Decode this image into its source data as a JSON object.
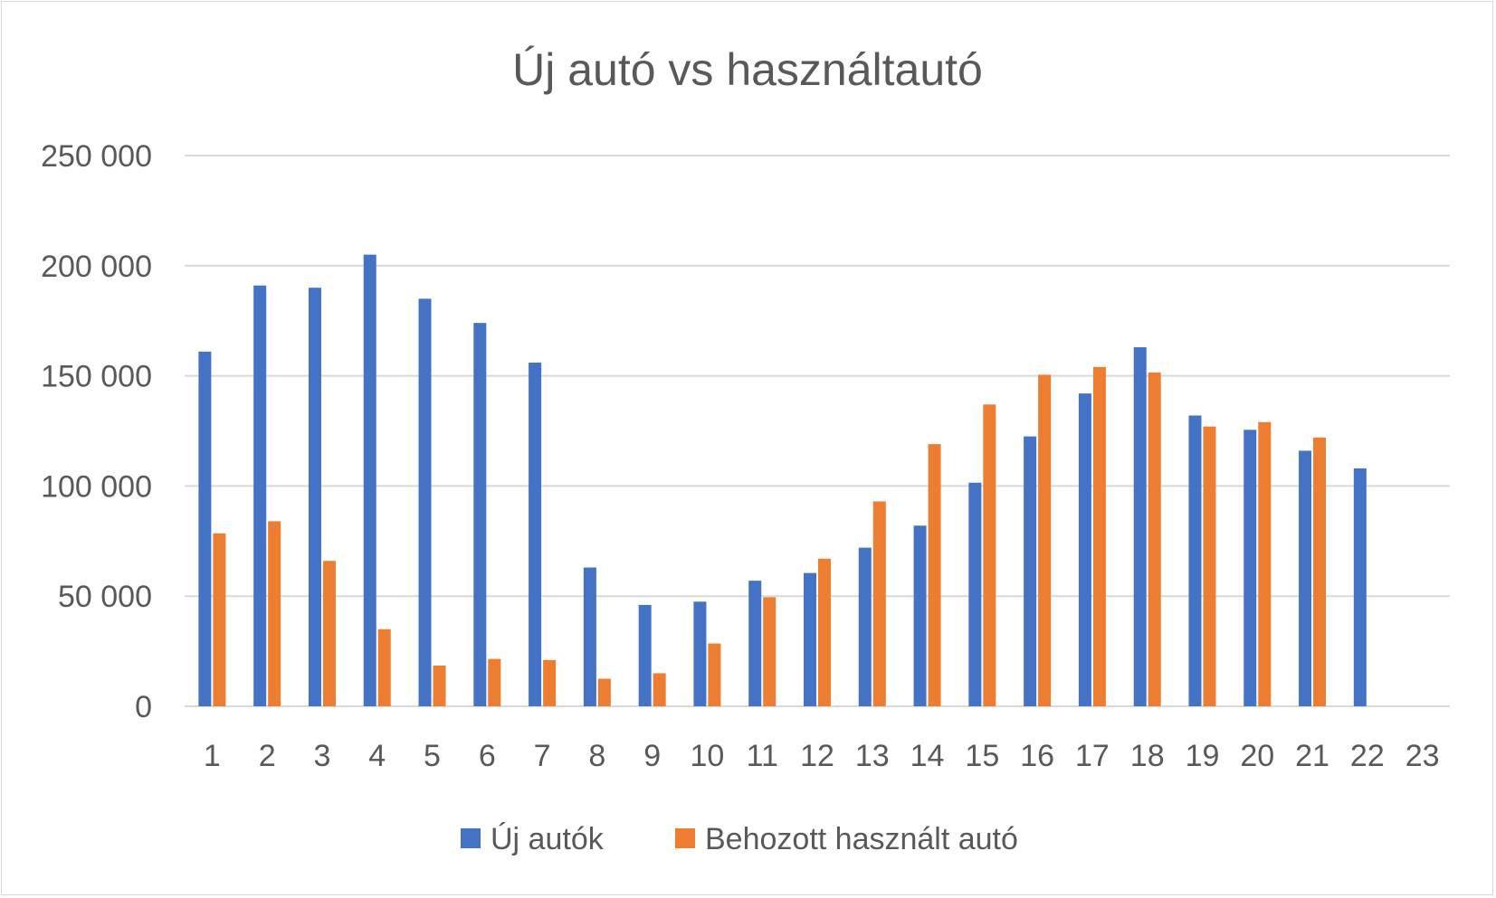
{
  "chart_data": {
    "type": "bar",
    "title": "Új autó vs használtautó",
    "xlabel": "",
    "ylabel": "",
    "categories": [
      "1",
      "2",
      "3",
      "4",
      "5",
      "6",
      "7",
      "8",
      "9",
      "10",
      "11",
      "12",
      "13",
      "14",
      "15",
      "16",
      "17",
      "18",
      "19",
      "20",
      "21",
      "22",
      "23"
    ],
    "series": [
      {
        "name": "Új autók",
        "color": "#4472c4",
        "values": [
          161000,
          191000,
          190000,
          205000,
          185000,
          174000,
          156000,
          63000,
          46000,
          47500,
          57000,
          60500,
          72000,
          82000,
          101500,
          122500,
          142000,
          163000,
          132000,
          125500,
          116000,
          108000,
          null
        ]
      },
      {
        "name": "Behozott használt autó",
        "color": "#ed7d31",
        "values": [
          78500,
          84000,
          66000,
          35000,
          18500,
          21500,
          21000,
          12500,
          15000,
          28500,
          49500,
          67000,
          93000,
          119000,
          137000,
          150500,
          154000,
          151500,
          127000,
          129000,
          122000,
          null,
          null
        ]
      }
    ],
    "ylim": [
      0,
      250000
    ],
    "yticks": [
      "0",
      "50 000",
      "100 000",
      "150 000",
      "200 000",
      "250 000"
    ],
    "ytick_values": [
      0,
      50000,
      100000,
      150000,
      200000,
      250000
    ],
    "grid": true,
    "legend_position": "bottom",
    "colors": {
      "gridline": "#d9d9d9",
      "text": "#595959",
      "frame": "#d9d9d9"
    }
  }
}
